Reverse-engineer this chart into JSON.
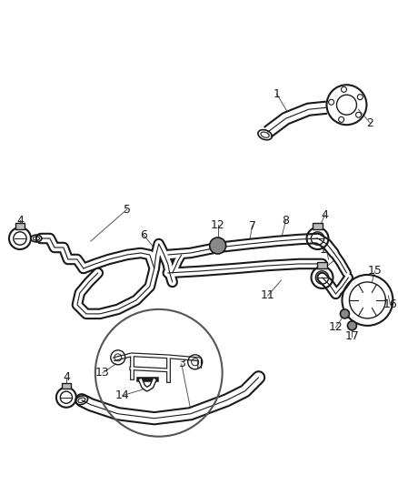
{
  "bg_color": "#ffffff",
  "line_color": "#1a1a1a",
  "fig_w": 4.38,
  "fig_h": 5.33,
  "dpi": 100
}
